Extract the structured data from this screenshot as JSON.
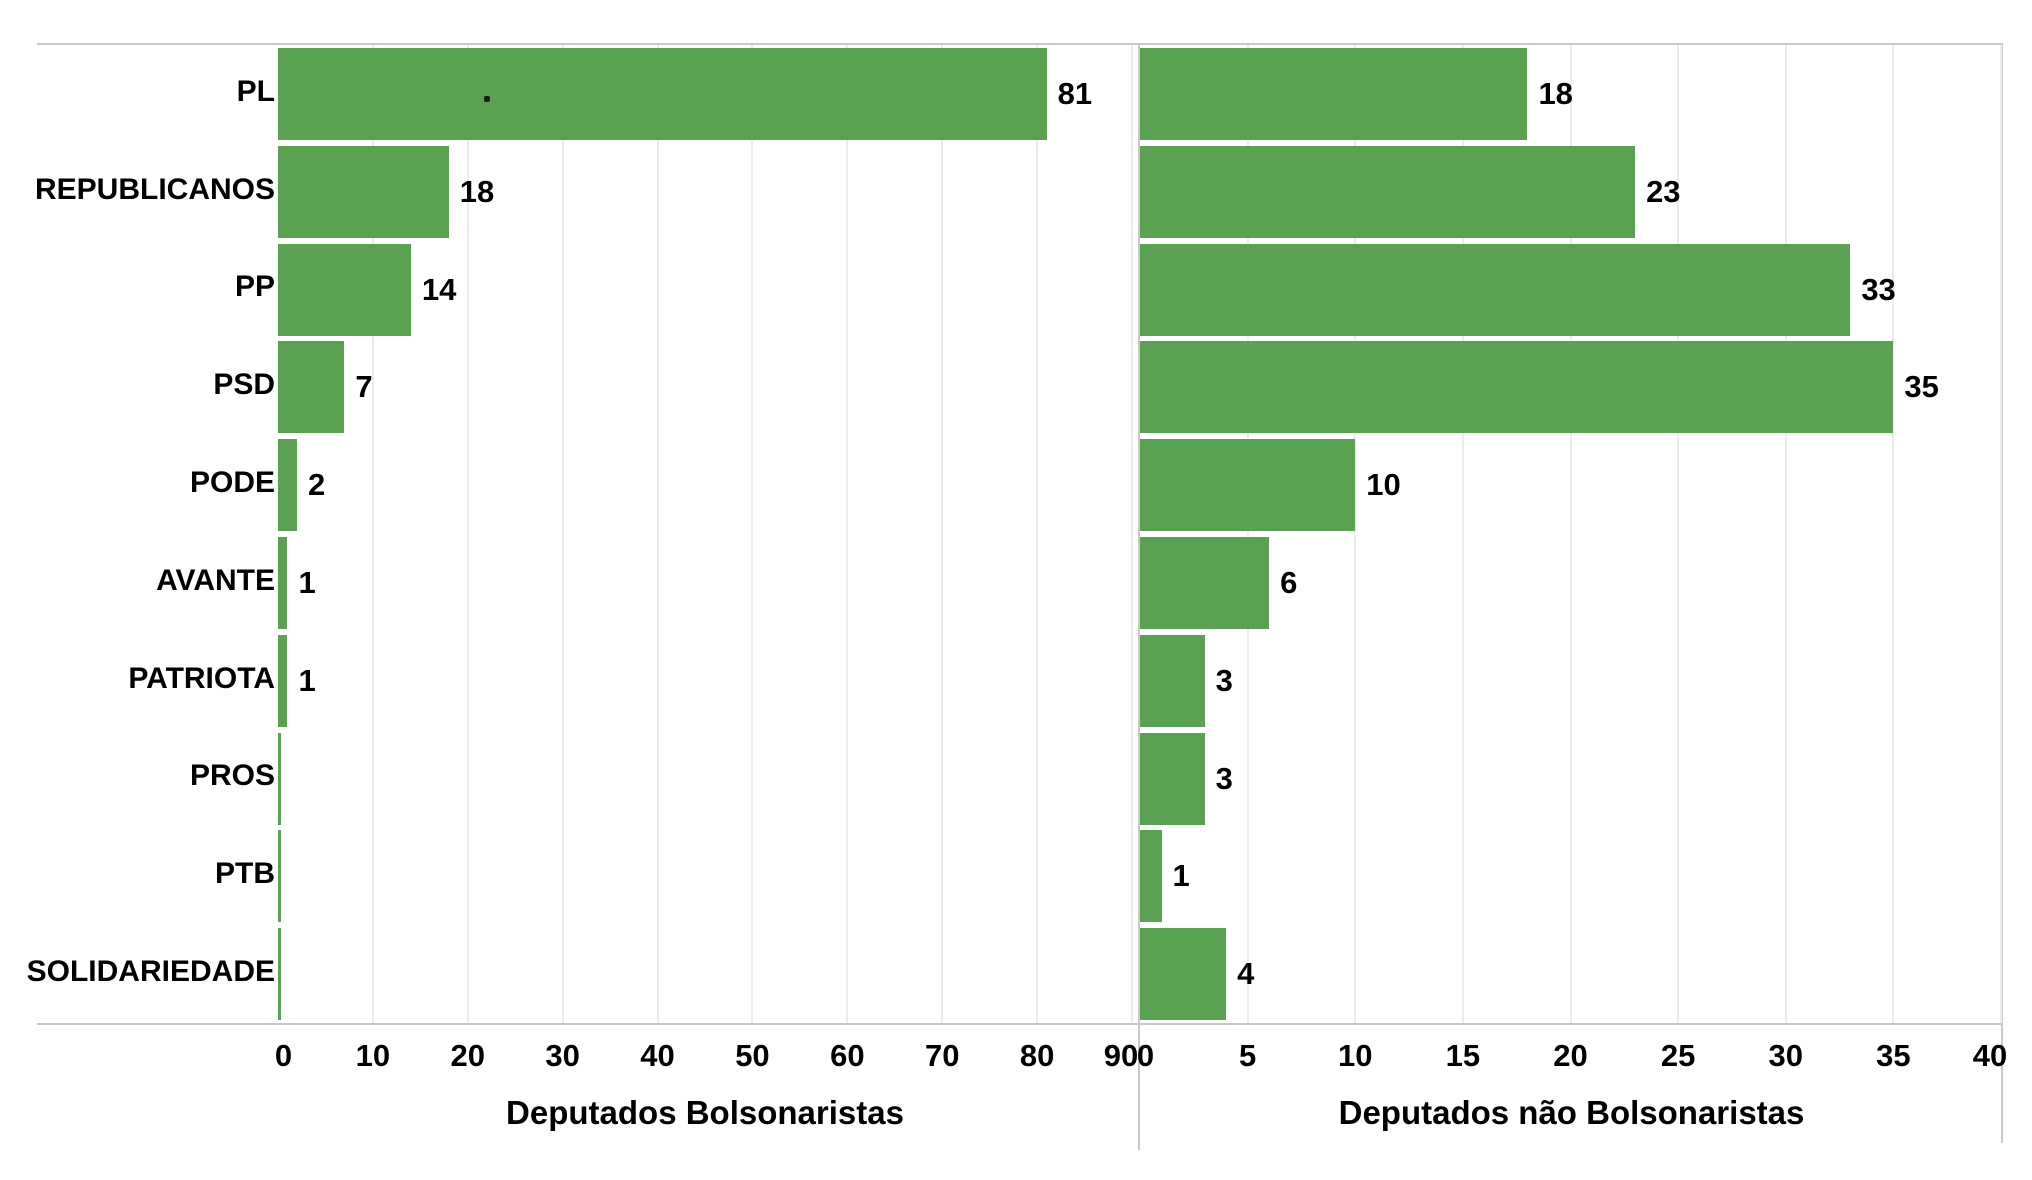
{
  "chart_data": {
    "type": "bar",
    "orientation": "horizontal",
    "categories": [
      "PL",
      "REPUBLICANOS",
      "PP",
      "PSD",
      "PODE",
      "AVANTE",
      "PATRIOTA",
      "PROS",
      "PTB",
      "SOLIDARIEDADE"
    ],
    "series": [
      {
        "name": "Deputados Bolsonaristas",
        "values": [
          81,
          18,
          14,
          7,
          2,
          1,
          1,
          0,
          0,
          0
        ],
        "xlim": [
          0,
          90
        ],
        "ticks": [
          0,
          10,
          20,
          30,
          40,
          50,
          60,
          70,
          80,
          90
        ]
      },
      {
        "name": "Deputados não Bolsonaristas",
        "values": [
          18,
          23,
          33,
          35,
          10,
          6,
          3,
          3,
          1,
          4
        ],
        "xlim": [
          0,
          40
        ],
        "ticks": [
          0,
          5,
          10,
          15,
          20,
          25,
          30,
          35,
          40
        ]
      }
    ],
    "bar_color": "#5aa252",
    "gridline_color": "#ececec",
    "axis_line_color": "#c9c9c9",
    "text_color": "#111111",
    "grid": true,
    "legend_position": "none",
    "value_labels": "shown for non-zero bars",
    "annotations": [
      {
        "type": "stray-dot",
        "row": "PL",
        "pane": 0
      }
    ]
  }
}
